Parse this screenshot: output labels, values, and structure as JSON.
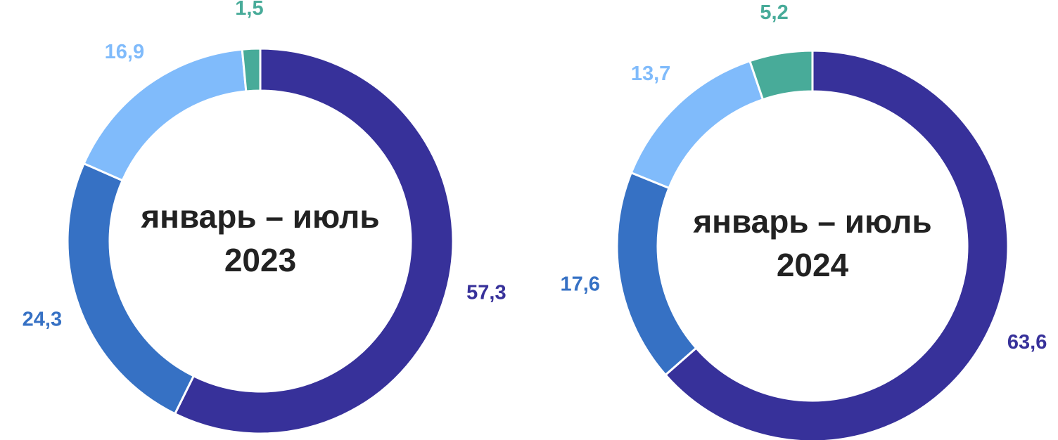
{
  "chart_data": [
    {
      "type": "donut",
      "center_text": [
        "январь – июль",
        "2023"
      ],
      "values": [
        57.3,
        24.3,
        16.9,
        1.5
      ],
      "value_labels": [
        "57,3",
        "24,3",
        "16,9",
        "1,5"
      ],
      "colors": [
        "#37319a",
        "#3671c4",
        "#80bbfb",
        "#48ab99"
      ]
    },
    {
      "type": "donut",
      "center_text": [
        "январь – июль",
        "2024"
      ],
      "values": [
        63.6,
        17.6,
        13.7,
        5.2
      ],
      "value_labels": [
        "63,6",
        "17,6",
        "13,7",
        "5,2"
      ],
      "colors": [
        "#37319a",
        "#3671c4",
        "#80bbfb",
        "#48ab99"
      ]
    }
  ]
}
